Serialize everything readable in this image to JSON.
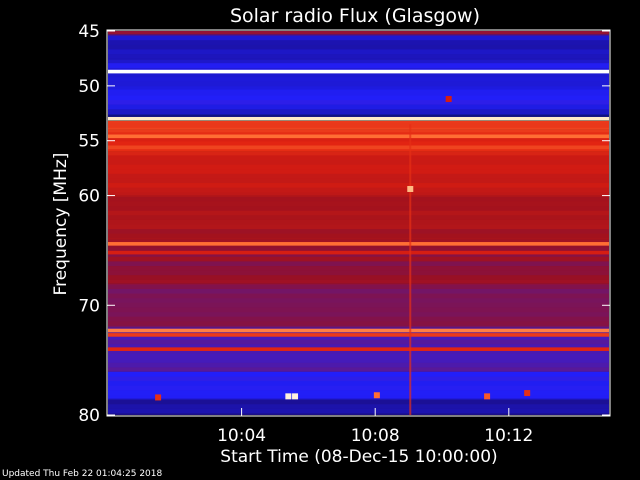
{
  "chart_data": {
    "type": "heatmap",
    "title": "Solar radio Flux (Glasgow)",
    "xlabel": "Start Time (08-Dec-15 10:00:00)",
    "ylabel": "Frequency [MHz]",
    "x_unit": "minutes after 10:00:00",
    "xlim": [
      0,
      15
    ],
    "ylim": [
      80,
      45
    ],
    "x_ticks": [
      {
        "value": 4,
        "label": "10:04"
      },
      {
        "value": 8,
        "label": "10:08"
      },
      {
        "value": 12,
        "label": "10:12"
      }
    ],
    "y_ticks": [
      {
        "value": 45,
        "label": "45"
      },
      {
        "value": 50,
        "label": "50"
      },
      {
        "value": 55,
        "label": "55"
      },
      {
        "value": 60,
        "label": "60"
      },
      {
        "value": 70,
        "label": "70"
      },
      {
        "value": 80,
        "label": "80"
      }
    ],
    "colormap": [
      "#000000",
      "#1a0a6a",
      "#2020ff",
      "#9a1020",
      "#e02010",
      "#ff6a30",
      "#ffd8a0",
      "#ffffff"
    ],
    "background_bands": [
      {
        "from": 45,
        "to": 45.3,
        "level": 0.45
      },
      {
        "from": 45.3,
        "to": 47.6,
        "level": 0.22
      },
      {
        "from": 47.6,
        "to": 48.4,
        "level": 0.27
      },
      {
        "from": 48.4,
        "to": 50.3,
        "level": 0.24
      },
      {
        "from": 50.3,
        "to": 51.7,
        "level": 0.29
      },
      {
        "from": 51.7,
        "to": 52.6,
        "level": 0.25
      },
      {
        "from": 53.2,
        "to": 54.0,
        "level": 0.62
      },
      {
        "from": 54.0,
        "to": 56.0,
        "level": 0.58
      },
      {
        "from": 56.0,
        "to": 60.0,
        "level": 0.52
      },
      {
        "from": 60.0,
        "to": 64.0,
        "level": 0.46
      },
      {
        "from": 64.0,
        "to": 68.0,
        "level": 0.42
      },
      {
        "from": 68.0,
        "to": 72.0,
        "level": 0.4
      },
      {
        "from": 72.0,
        "to": 76.0,
        "level": 0.33
      },
      {
        "from": 76.0,
        "to": 78.5,
        "level": 0.29
      },
      {
        "from": 78.5,
        "to": 80.0,
        "level": 0.19
      }
    ],
    "bright_lines": [
      {
        "freq": 48.7,
        "level": 1.0
      },
      {
        "freq": 53.0,
        "level": 0.92
      },
      {
        "freq": 54.6,
        "level": 0.72
      },
      {
        "freq": 55.6,
        "level": 0.64
      },
      {
        "freq": 64.4,
        "level": 0.72
      },
      {
        "freq": 65.2,
        "level": 0.55
      },
      {
        "freq": 72.3,
        "level": 0.74
      },
      {
        "freq": 72.7,
        "level": 0.62
      },
      {
        "freq": 74.0,
        "level": 0.58
      }
    ],
    "hot_spots": [
      {
        "t": 9.05,
        "freq": 59.4,
        "level": 0.82
      },
      {
        "t": 10.2,
        "freq": 51.2,
        "level": 0.55
      },
      {
        "t": 5.4,
        "freq": 78.3,
        "level": 0.95
      },
      {
        "t": 5.6,
        "freq": 78.3,
        "level": 0.95
      },
      {
        "t": 8.05,
        "freq": 78.2,
        "level": 0.72
      },
      {
        "t": 11.35,
        "freq": 78.3,
        "level": 0.68
      },
      {
        "t": 12.55,
        "freq": 78.0,
        "level": 0.6
      },
      {
        "t": 1.5,
        "freq": 78.4,
        "level": 0.6
      }
    ],
    "vertical_streak": {
      "t": 9.05,
      "from": 53.5,
      "to": 80,
      "level": 0.6
    }
  },
  "footer": {
    "updated": "Updated Thu Feb 22 01:04:25 2018"
  }
}
